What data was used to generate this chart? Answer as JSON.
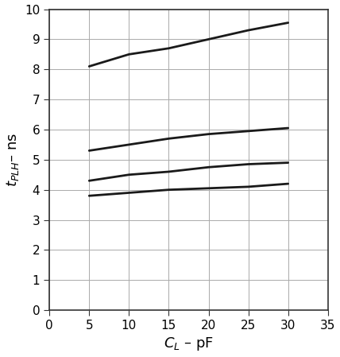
{
  "lines": [
    {
      "x": [
        5,
        10,
        15,
        20,
        25,
        30
      ],
      "y": [
        8.1,
        8.5,
        8.7,
        9.0,
        9.3,
        9.55
      ],
      "color": "#1a1a1a",
      "linewidth": 2.0
    },
    {
      "x": [
        5,
        10,
        15,
        20,
        25,
        30
      ],
      "y": [
        5.3,
        5.5,
        5.7,
        5.85,
        5.95,
        6.05
      ],
      "color": "#1a1a1a",
      "linewidth": 2.0
    },
    {
      "x": [
        5,
        10,
        15,
        20,
        25,
        30
      ],
      "y": [
        4.3,
        4.5,
        4.6,
        4.75,
        4.85,
        4.9
      ],
      "color": "#1a1a1a",
      "linewidth": 2.0
    },
    {
      "x": [
        5,
        10,
        15,
        20,
        25,
        30
      ],
      "y": [
        3.8,
        3.9,
        4.0,
        4.05,
        4.1,
        4.2
      ],
      "color": "#1a1a1a",
      "linewidth": 2.0
    }
  ],
  "xlim": [
    0,
    35
  ],
  "ylim": [
    0,
    10
  ],
  "xticks": [
    0,
    5,
    10,
    15,
    20,
    25,
    30,
    35
  ],
  "yticks": [
    0,
    1,
    2,
    3,
    4,
    5,
    6,
    7,
    8,
    9,
    10
  ],
  "xlabel": "$C_L$ – pF",
  "ylabel": "$t_{PLH}$– ns",
  "grid_color": "#aaaaaa",
  "background_color": "#ffffff",
  "tick_fontsize": 11,
  "label_fontsize": 13,
  "spine_color": "#333333",
  "spine_linewidth": 1.2
}
